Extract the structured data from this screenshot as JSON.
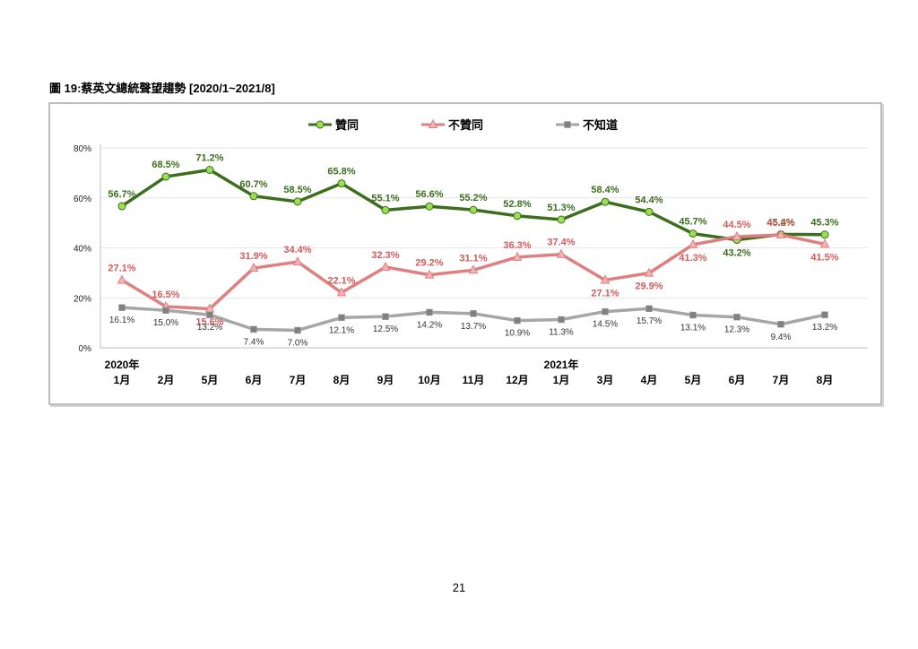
{
  "figure": {
    "title": "圖 19:蔡英文總統聲望趨勢  [2020/1~2021/8]"
  },
  "page": {
    "number": "21"
  },
  "chart_data": {
    "type": "line",
    "title": "",
    "xlabel": "",
    "ylabel": "",
    "ylim": [
      0,
      80
    ],
    "y_ticks": [
      "0%",
      "20%",
      "40%",
      "60%",
      "80%"
    ],
    "grid": true,
    "legend_position": "top",
    "categories": [
      [
        "2020年",
        "1月"
      ],
      [
        "",
        "2月"
      ],
      [
        "",
        "5月"
      ],
      [
        "",
        "6月"
      ],
      [
        "",
        "7月"
      ],
      [
        "",
        "8月"
      ],
      [
        "",
        "9月"
      ],
      [
        "",
        "10月"
      ],
      [
        "",
        "11月"
      ],
      [
        "",
        "12月"
      ],
      [
        "2021年",
        "1月"
      ],
      [
        "",
        "3月"
      ],
      [
        "",
        "4月"
      ],
      [
        "",
        "5月"
      ],
      [
        "",
        "6月"
      ],
      [
        "",
        "7月"
      ],
      [
        "",
        "8月"
      ]
    ],
    "series": [
      {
        "name": "贊同",
        "color": "#3c6e1e",
        "marker_color": "#9be04e",
        "marker": "circle",
        "label_color": "#3c6e1e",
        "label_position": "above",
        "values": [
          56.7,
          68.5,
          71.2,
          60.7,
          58.5,
          65.8,
          55.1,
          56.6,
          55.2,
          52.8,
          51.3,
          58.4,
          54.4,
          45.7,
          43.2,
          45.4,
          45.3
        ],
        "labels": [
          "56.7%",
          "68.5%",
          "71.2%",
          "60.7%",
          "58.5%",
          "65.8%",
          "55.1%",
          "56.6%",
          "55.2%",
          "52.8%",
          "51.3%",
          "58.4%",
          "54.4%",
          "45.7%",
          "43.2%",
          "45.4%",
          "45.3%"
        ]
      },
      {
        "name": "不贊同",
        "color": "#e07f80",
        "marker_color": "#f4b3b3",
        "marker": "triangle",
        "label_color": "#d55a5b",
        "label_position": "mixed",
        "values": [
          27.1,
          16.5,
          15.6,
          31.9,
          34.4,
          22.1,
          32.3,
          29.2,
          31.1,
          36.3,
          37.4,
          27.1,
          29.9,
          41.3,
          44.5,
          45.2,
          41.5
        ],
        "labels": [
          "27.1%",
          "16.5%",
          "15.6%",
          "31.9%",
          "34.4%",
          "22.1%",
          "32.3%",
          "29.2%",
          "31.1%",
          "36.3%",
          "37.4%",
          "27.1%",
          "29.9%",
          "41.3%",
          "44.5%",
          "45.2%",
          "41.5%"
        ]
      },
      {
        "name": "不知道",
        "color": "#a6a6a6",
        "marker_color": "#808080",
        "marker": "square",
        "label_color": "#333333",
        "label_position": "below",
        "values": [
          16.1,
          15.0,
          13.2,
          7.4,
          7.0,
          12.1,
          12.5,
          14.2,
          13.7,
          10.9,
          11.3,
          14.5,
          15.7,
          13.1,
          12.3,
          9.4,
          13.2
        ],
        "labels": [
          "16.1%",
          "15.0%",
          "13.2%",
          "7.4%",
          "7.0%",
          "12.1%",
          "12.5%",
          "14.2%",
          "13.7%",
          "10.9%",
          "11.3%",
          "14.5%",
          "15.7%",
          "13.1%",
          "12.3%",
          "9.4%",
          "13.2%"
        ]
      }
    ]
  }
}
